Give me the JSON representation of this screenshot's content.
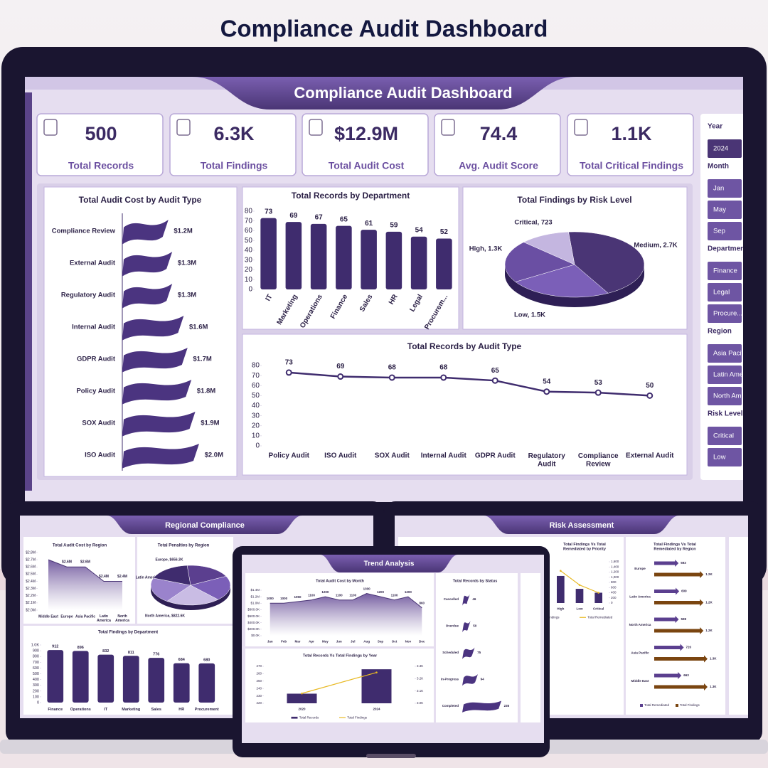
{
  "page_title": "Compliance Audit Dashboard",
  "dashboard": {
    "title": "Compliance Audit Dashboard",
    "kpis": [
      {
        "value": "500",
        "label": "Total Records"
      },
      {
        "value": "6.3K",
        "label": "Total Findings"
      },
      {
        "value": "$12.9M",
        "label": "Total Audit Cost"
      },
      {
        "value": "74.4",
        "label": "Avg. Audit Score"
      },
      {
        "value": "1.1K",
        "label": "Total Critical Findings"
      }
    ],
    "slicers": [
      {
        "title": "Year",
        "items": [
          "2024"
        ]
      },
      {
        "title": "Month",
        "items": [
          "Jan",
          "May",
          "Sep"
        ]
      },
      {
        "title": "Department",
        "items": [
          "Finance",
          "Legal",
          "Procure..."
        ]
      },
      {
        "title": "Region",
        "items": [
          "Asia Pacif",
          "Latin Ame",
          "North Am"
        ]
      },
      {
        "title": "Risk Level",
        "items": [
          "Critical",
          "Low"
        ]
      }
    ]
  },
  "mockups": [
    {
      "title": "Regional Compliance"
    },
    {
      "title": "Trend Analysis"
    },
    {
      "title": "Risk Assessment"
    }
  ],
  "chart_data": [
    {
      "type": "bar",
      "orientation": "horizontal",
      "title": "Total Audit Cost by Audit Type",
      "categories": [
        "Compliance Review",
        "External Audit",
        "Regulatory Audit",
        "Internal Audit",
        "GDPR Audit",
        "Policy Audit",
        "SOX Audit",
        "ISO Audit"
      ],
      "values": [
        1.2,
        1.3,
        1.3,
        1.6,
        1.7,
        1.8,
        1.9,
        2.0
      ],
      "value_labels": [
        "$1.2M",
        "$1.3M",
        "$1.3M",
        "$1.6M",
        "$1.7M",
        "$1.8M",
        "$1.9M",
        "$2.0M"
      ],
      "color": "#4b3480"
    },
    {
      "type": "bar",
      "title": "Total Records by Department",
      "categories": [
        "IT",
        "Marketing",
        "Operations",
        "Finance",
        "Sales",
        "HR",
        "Legal",
        "Procurem..."
      ],
      "values": [
        73,
        69,
        67,
        65,
        61,
        59,
        54,
        52
      ],
      "color": "#3f2c6e",
      "ylim": [
        0,
        80
      ],
      "yticks": [
        0,
        10,
        20,
        30,
        40,
        50,
        60,
        70,
        80
      ]
    },
    {
      "type": "pie",
      "title": "Total Findings by Risk Level",
      "values": [
        2700,
        1500,
        1300,
        723
      ],
      "value_labels": [
        "Medium, 2.7K",
        "Low, 1.5K",
        "High, 1.3K",
        "Critical, 723"
      ],
      "colors": [
        "#4a3575",
        "#7b5fb8",
        "#6a4fa3",
        "#c4b6e0"
      ]
    },
    {
      "type": "line",
      "title": "Total Records by Audit Type",
      "categories": [
        "Policy Audit",
        "ISO Audit",
        "SOX Audit",
        "Internal Audit",
        "GDPR Audit",
        "Regulatory Audit",
        "Compliance Review",
        "External Audit"
      ],
      "values": [
        73,
        69,
        68,
        68,
        65,
        54,
        53,
        50
      ],
      "color": "#3f2c6e",
      "ylim": [
        0,
        80
      ],
      "yticks": [
        0,
        10,
        20,
        30,
        40,
        50,
        60,
        70,
        80
      ]
    },
    {
      "type": "area",
      "title": "Total Audit Cost by Region",
      "categories": [
        "Middle East",
        "Europe",
        "Asia Pacific",
        "Latin America",
        "North America"
      ],
      "values": [
        2.7,
        2.6,
        2.6,
        2.4,
        2.4
      ],
      "value_labels": [
        null,
        "$2.6M",
        "$2.6M",
        "$2.4M",
        "$2.4M"
      ],
      "color": "#4a3575",
      "ylim": [
        2.0,
        2.8
      ],
      "yticks": [
        {
          "value": 2.0,
          "label": "$2.0M"
        },
        {
          "value": 2.1,
          "label": "$2.1M"
        },
        {
          "value": 2.2,
          "label": "$2.2M"
        },
        {
          "value": 2.3,
          "label": "$2.3M"
        },
        {
          "value": 2.4,
          "label": "$2.4M"
        },
        {
          "value": 2.5,
          "label": "$2.5M"
        },
        {
          "value": 2.6,
          "label": "$2.6M"
        },
        {
          "value": 2.7,
          "label": "$2.7M"
        },
        {
          "value": 2.8,
          "label": "$2.8M"
        }
      ]
    },
    {
      "type": "pie",
      "title": "Total Penalties by Region",
      "values": [
        700,
        750,
        822.6,
        766.9,
        656.3
      ],
      "value_labels": [
        null,
        null,
        "North America, $822.6K",
        "Latin America, $766.9K",
        "Europe, $656.3K"
      ],
      "colors": [
        "#5b3f8f",
        "#7b5fb8",
        "#c9bce4",
        "#9a83cc",
        "#3f2c6e"
      ]
    },
    {
      "type": "bar",
      "title": "Total Findings by Department",
      "categories": [
        "Finance",
        "Operations",
        "IT",
        "Marketing",
        "Sales",
        "HR",
        "Procurement"
      ],
      "values": [
        912,
        896,
        832,
        811,
        776,
        684,
        680
      ],
      "color": "#3f2c6e",
      "ylim": [
        0,
        1000
      ],
      "yticks": [
        0,
        100,
        200,
        300,
        400,
        500,
        600,
        700,
        800,
        900,
        {
          "value": 1000,
          "label": "1.0K"
        }
      ]
    },
    {
      "type": "area",
      "title": "Total Audit Cost by Month",
      "categories": [
        "Jan",
        "Feb",
        "Mar",
        "Apr",
        "May",
        "Jun",
        "Jul",
        "Aug",
        "Sep",
        "Oct",
        "Nov",
        "Dec"
      ],
      "values": [
        1000,
        1000,
        1050,
        1100,
        1200,
        1100,
        1100,
        1300,
        1200,
        1100,
        1200,
        860
      ],
      "color": "#4a3575",
      "ylim": [
        0,
        1400
      ],
      "yticks": [
        {
          "value": 0,
          "label": "$0.0K"
        },
        {
          "value": 200,
          "label": "$200.0K"
        },
        {
          "value": 400,
          "label": "$400.0K"
        },
        {
          "value": 600,
          "label": "$600.0K"
        },
        {
          "value": 800,
          "label": "$800.0K"
        },
        {
          "value": 1000,
          "label": "$1.0M"
        },
        {
          "value": 1200,
          "label": "$1.2M"
        },
        {
          "value": 1400,
          "label": "$1.4M"
        }
      ]
    },
    {
      "type": "bar",
      "orientation": "horizontal",
      "title": "Total Records by Status",
      "categories": [
        "Cancelled",
        "Overdue",
        "Scheduled",
        "In-Progress",
        "Completed"
      ],
      "values": [
        46,
        50,
        75,
        94,
        235
      ],
      "color": "#4b3480"
    },
    {
      "type": "bar",
      "title": "Total Records Vs Total Findings by Year",
      "categories": [
        "2020",
        "2024"
      ],
      "series": [
        {
          "name": "Total Records",
          "type": "bar",
          "color": "#3f2c6e",
          "values": [
            233,
            266
          ]
        },
        {
          "name": "Total Findings",
          "type": "line",
          "axis": "y2",
          "color": "#e8b923",
          "values": [
            3080,
            3250
          ]
        }
      ],
      "ylim": [
        220,
        270
      ],
      "yticks": [
        220,
        230,
        240,
        250,
        260,
        270
      ],
      "y2lim": [
        3000,
        3300
      ],
      "y2ticks": [
        {
          "value": 3000,
          "label": "3.0K"
        },
        {
          "value": 3100,
          "label": "3.1K"
        },
        {
          "value": 3200,
          "label": "3.2K"
        },
        {
          "value": 3300,
          "label": "3.3K"
        }
      ]
    },
    {
      "type": "bar",
      "title": "Total Findings Vs Total Remediated by Priority",
      "categories": [
        "High",
        "Low",
        "Critical"
      ],
      "series": [
        {
          "name": "Total Findings",
          "type": "bar",
          "axis": "y2",
          "color": "#3f2c6e",
          "values": [
            1050,
            550,
            400
          ]
        },
        {
          "name": "Total Remediated",
          "type": "line",
          "axis": "y2",
          "color": "#e8b923",
          "values": [
            1250,
            700,
            400
          ]
        }
      ],
      "y2lim": [
        0,
        1600
      ],
      "y2ticks": [
        0,
        200,
        400,
        600,
        800,
        {
          "value": 1000,
          "label": "1,000"
        },
        {
          "value": 1200,
          "label": "1,200"
        },
        {
          "value": 1400,
          "label": "1,400"
        },
        {
          "value": 1600,
          "label": "1,600"
        }
      ]
    },
    {
      "type": "bar",
      "orientation": "horizontal",
      "title": "Total Findings Vs Total Remediated by Region",
      "categories": [
        "Europe",
        "Latin America",
        "North America",
        "Asia Pacific",
        "Middle East"
      ],
      "series": [
        {
          "name": "Total Remediated",
          "color": "#5b3f8f",
          "values": [
            593,
            609,
            598,
            720,
            663
          ]
        },
        {
          "name": "Total Findings",
          "color": "#7a4510",
          "values": [
            1200,
            1200,
            1200,
            1300,
            1300
          ],
          "value_labels": [
            "1.2K",
            "1.2K",
            "1.2K",
            "1.3K",
            "1.3K"
          ]
        }
      ]
    }
  ]
}
